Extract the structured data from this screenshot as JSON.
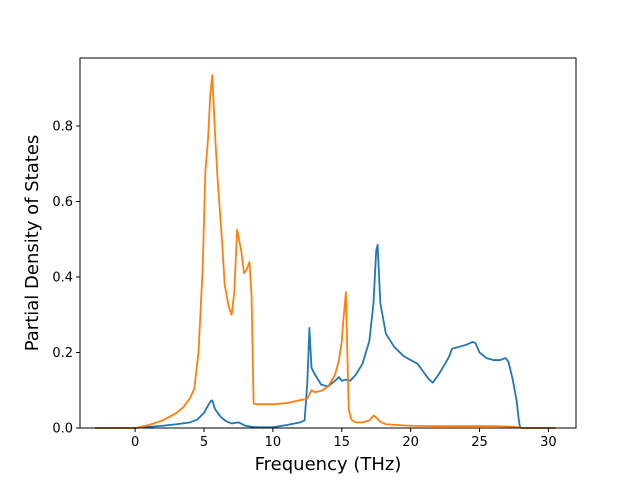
{
  "chart_data": {
    "type": "line",
    "title": "",
    "xlabel": "Frequency (THz)",
    "ylabel": "Partial Density of States",
    "xlim": [
      -4,
      32
    ],
    "ylim": [
      0,
      0.98
    ],
    "x_ticks": [
      0,
      5,
      10,
      15,
      20,
      25,
      30
    ],
    "x_tick_labels": [
      "0",
      "5",
      "10",
      "15",
      "20",
      "25",
      "30"
    ],
    "y_ticks": [
      0.0,
      0.2,
      0.4,
      0.6,
      0.8
    ],
    "y_tick_labels": [
      "0.0",
      "0.2",
      "0.4",
      "0.6",
      "0.8"
    ],
    "grid": false,
    "legend": "none",
    "series": [
      {
        "color": "#1f77b4",
        "x": [
          -2.9,
          0.0,
          1.0,
          2.0,
          3.0,
          4.0,
          4.5,
          5.0,
          5.3,
          5.5,
          5.6,
          5.8,
          6.2,
          6.6,
          7.0,
          7.5,
          8.0,
          8.5,
          9.0,
          10.0,
          11.0,
          12.0,
          12.3,
          12.5,
          12.65,
          12.8,
          13.0,
          13.5,
          14.0,
          14.5,
          14.8,
          15.0,
          15.3,
          15.6,
          16.0,
          16.5,
          17.0,
          17.3,
          17.5,
          17.6,
          17.8,
          18.2,
          18.8,
          19.5,
          20.5,
          21.0,
          21.3,
          21.6,
          22.0,
          22.5,
          22.8,
          23.0,
          24.0,
          24.5,
          24.7,
          25.0,
          25.5,
          26.0,
          26.5,
          26.7,
          26.9,
          27.1,
          27.4,
          27.7,
          27.85,
          27.95,
          28.2,
          30.5
        ],
        "y": [
          0.0,
          0.0,
          0.003,
          0.006,
          0.01,
          0.015,
          0.022,
          0.04,
          0.06,
          0.072,
          0.073,
          0.05,
          0.03,
          0.018,
          0.012,
          0.015,
          0.006,
          0.003,
          0.002,
          0.002,
          0.008,
          0.015,
          0.02,
          0.12,
          0.265,
          0.16,
          0.145,
          0.115,
          0.11,
          0.125,
          0.135,
          0.125,
          0.128,
          0.125,
          0.14,
          0.17,
          0.23,
          0.33,
          0.47,
          0.485,
          0.33,
          0.25,
          0.215,
          0.19,
          0.17,
          0.145,
          0.13,
          0.12,
          0.14,
          0.17,
          0.19,
          0.21,
          0.22,
          0.228,
          0.225,
          0.2,
          0.185,
          0.18,
          0.18,
          0.183,
          0.185,
          0.175,
          0.13,
          0.07,
          0.02,
          0.0,
          0.0,
          0.0
        ]
      },
      {
        "color": "#ff7f0e",
        "x": [
          -2.9,
          0.0,
          1.0,
          2.0,
          3.0,
          3.5,
          4.0,
          4.3,
          4.6,
          4.9,
          5.1,
          5.3,
          5.45,
          5.6,
          5.8,
          6.0,
          6.3,
          6.5,
          6.8,
          7.0,
          7.2,
          7.4,
          7.7,
          7.9,
          8.1,
          8.3,
          8.45,
          8.6,
          8.8,
          9.5,
          10.0,
          11.0,
          11.5,
          12.0,
          12.3,
          12.5,
          12.8,
          13.0,
          13.5,
          14.0,
          14.5,
          14.8,
          15.0,
          15.1,
          15.3,
          15.5,
          15.7,
          16.0,
          16.5,
          17.0,
          17.3,
          17.5,
          17.8,
          18.2,
          19.0,
          20.0,
          22.0,
          24.0,
          26.0,
          27.0,
          27.5,
          27.8,
          28.0,
          30.5
        ],
        "y": [
          0.0,
          0.0,
          0.008,
          0.02,
          0.04,
          0.055,
          0.08,
          0.105,
          0.2,
          0.42,
          0.68,
          0.77,
          0.88,
          0.935,
          0.78,
          0.65,
          0.5,
          0.38,
          0.32,
          0.3,
          0.36,
          0.525,
          0.47,
          0.41,
          0.42,
          0.44,
          0.35,
          0.065,
          0.063,
          0.063,
          0.063,
          0.066,
          0.07,
          0.074,
          0.076,
          0.078,
          0.1,
          0.095,
          0.098,
          0.11,
          0.14,
          0.18,
          0.23,
          0.28,
          0.36,
          0.05,
          0.022,
          0.015,
          0.015,
          0.02,
          0.033,
          0.028,
          0.016,
          0.01,
          0.008,
          0.006,
          0.005,
          0.005,
          0.005,
          0.004,
          0.003,
          0.002,
          0.0,
          0.0
        ]
      }
    ]
  }
}
